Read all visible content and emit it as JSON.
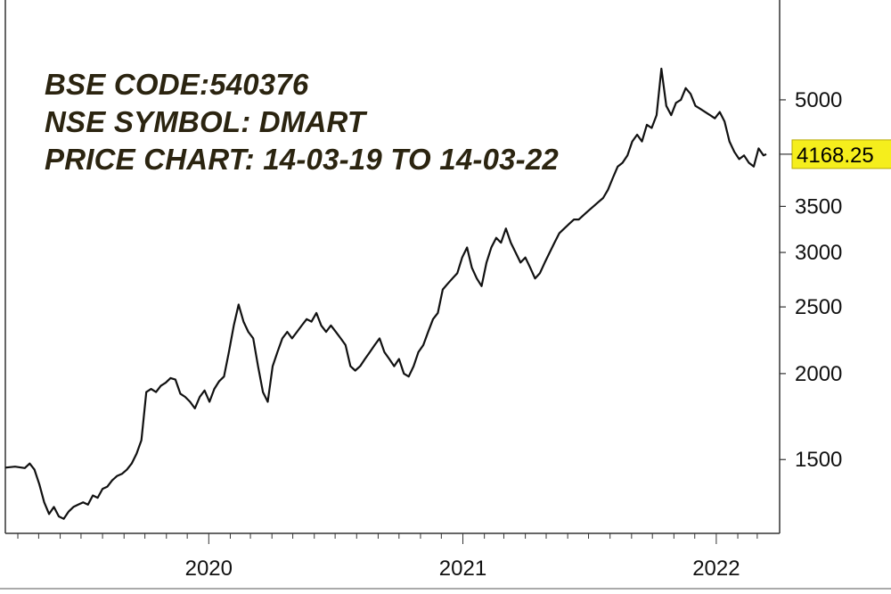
{
  "info": {
    "line1": "BSE CODE:540376",
    "line2": "NSE SYMBOL: DMART",
    "line3": "PRICE CHART: 14-03-19 TO 14-03-22"
  },
  "colors": {
    "line": "#111111",
    "axis": "#333333",
    "last_price_bg": "#f5ee1c",
    "text": "#2b2410"
  },
  "chart_data": {
    "type": "line",
    "y_scale": "log",
    "ylim": [
      1200,
      5500
    ],
    "xlim": [
      "2019-03-14",
      "2022-03-14"
    ],
    "grid": false,
    "y_ticks": [
      {
        "value": 1500,
        "label": "1500"
      },
      {
        "value": 2000,
        "label": "2000"
      },
      {
        "value": 2500,
        "label": "2500"
      },
      {
        "value": 3000,
        "label": "3000"
      },
      {
        "value": 3500,
        "label": "3500"
      },
      {
        "value": 5000,
        "label": "5000"
      }
    ],
    "x_ticks": [
      {
        "date": "2020-01-01",
        "label": "2020"
      },
      {
        "date": "2021-01-01",
        "label": "2021"
      },
      {
        "date": "2022-01-01",
        "label": "2022"
      }
    ],
    "last_price": {
      "value": 4168.25,
      "label": "4168.25"
    },
    "series": [
      {
        "points": [
          [
            "2019-03-14",
            1460
          ],
          [
            "2019-03-28",
            1465
          ],
          [
            "2019-04-11",
            1458
          ],
          [
            "2019-04-18",
            1480
          ],
          [
            "2019-04-25",
            1450
          ],
          [
            "2019-05-02",
            1380
          ],
          [
            "2019-05-09",
            1300
          ],
          [
            "2019-05-16",
            1250
          ],
          [
            "2019-05-23",
            1280
          ],
          [
            "2019-05-30",
            1240
          ],
          [
            "2019-06-06",
            1230
          ],
          [
            "2019-06-13",
            1260
          ],
          [
            "2019-06-20",
            1280
          ],
          [
            "2019-06-27",
            1290
          ],
          [
            "2019-07-04",
            1300
          ],
          [
            "2019-07-11",
            1290
          ],
          [
            "2019-07-18",
            1330
          ],
          [
            "2019-07-25",
            1320
          ],
          [
            "2019-08-01",
            1360
          ],
          [
            "2019-08-08",
            1370
          ],
          [
            "2019-08-15",
            1400
          ],
          [
            "2019-08-22",
            1420
          ],
          [
            "2019-08-29",
            1430
          ],
          [
            "2019-09-05",
            1450
          ],
          [
            "2019-09-12",
            1480
          ],
          [
            "2019-09-19",
            1530
          ],
          [
            "2019-09-26",
            1600
          ],
          [
            "2019-10-03",
            1880
          ],
          [
            "2019-10-10",
            1900
          ],
          [
            "2019-10-17",
            1880
          ],
          [
            "2019-10-24",
            1920
          ],
          [
            "2019-10-31",
            1940
          ],
          [
            "2019-11-07",
            1970
          ],
          [
            "2019-11-14",
            1960
          ],
          [
            "2019-11-21",
            1870
          ],
          [
            "2019-11-28",
            1850
          ],
          [
            "2019-12-05",
            1820
          ],
          [
            "2019-12-12",
            1780
          ],
          [
            "2019-12-19",
            1850
          ],
          [
            "2019-12-26",
            1890
          ],
          [
            "2020-01-02",
            1820
          ],
          [
            "2020-01-09",
            1900
          ],
          [
            "2020-01-16",
            1950
          ],
          [
            "2020-01-23",
            1980
          ],
          [
            "2020-01-30",
            2150
          ],
          [
            "2020-02-06",
            2350
          ],
          [
            "2020-02-13",
            2520
          ],
          [
            "2020-02-20",
            2380
          ],
          [
            "2020-02-27",
            2300
          ],
          [
            "2020-03-05",
            2250
          ],
          [
            "2020-03-12",
            2050
          ],
          [
            "2020-03-19",
            1880
          ],
          [
            "2020-03-26",
            1820
          ],
          [
            "2020-04-02",
            2050
          ],
          [
            "2020-04-09",
            2150
          ],
          [
            "2020-04-16",
            2250
          ],
          [
            "2020-04-23",
            2300
          ],
          [
            "2020-04-30",
            2250
          ],
          [
            "2020-05-07",
            2300
          ],
          [
            "2020-05-14",
            2350
          ],
          [
            "2020-05-21",
            2400
          ],
          [
            "2020-05-28",
            2380
          ],
          [
            "2020-06-04",
            2450
          ],
          [
            "2020-06-11",
            2350
          ],
          [
            "2020-06-18",
            2300
          ],
          [
            "2020-06-25",
            2350
          ],
          [
            "2020-07-02",
            2300
          ],
          [
            "2020-07-09",
            2250
          ],
          [
            "2020-07-16",
            2200
          ],
          [
            "2020-07-23",
            2050
          ],
          [
            "2020-07-30",
            2020
          ],
          [
            "2020-08-06",
            2050
          ],
          [
            "2020-08-13",
            2100
          ],
          [
            "2020-08-20",
            2150
          ],
          [
            "2020-08-27",
            2200
          ],
          [
            "2020-09-03",
            2250
          ],
          [
            "2020-09-10",
            2150
          ],
          [
            "2020-09-17",
            2100
          ],
          [
            "2020-09-24",
            2050
          ],
          [
            "2020-10-01",
            2100
          ],
          [
            "2020-10-08",
            2000
          ],
          [
            "2020-10-15",
            1980
          ],
          [
            "2020-10-22",
            2050
          ],
          [
            "2020-10-29",
            2150
          ],
          [
            "2020-11-05",
            2200
          ],
          [
            "2020-11-12",
            2300
          ],
          [
            "2020-11-19",
            2400
          ],
          [
            "2020-11-26",
            2450
          ],
          [
            "2020-12-03",
            2650
          ],
          [
            "2020-12-10",
            2700
          ],
          [
            "2020-12-17",
            2750
          ],
          [
            "2020-12-24",
            2800
          ],
          [
            "2020-12-31",
            2950
          ],
          [
            "2021-01-07",
            3050
          ],
          [
            "2021-01-14",
            2850
          ],
          [
            "2021-01-21",
            2750
          ],
          [
            "2021-01-28",
            2680
          ],
          [
            "2021-02-04",
            2900
          ],
          [
            "2021-02-11",
            3050
          ],
          [
            "2021-02-18",
            3150
          ],
          [
            "2021-02-25",
            3100
          ],
          [
            "2021-03-04",
            3250
          ],
          [
            "2021-03-11",
            3100
          ],
          [
            "2021-03-18",
            3000
          ],
          [
            "2021-03-25",
            2900
          ],
          [
            "2021-04-01",
            2950
          ],
          [
            "2021-04-08",
            2850
          ],
          [
            "2021-04-15",
            2750
          ],
          [
            "2021-04-22",
            2800
          ],
          [
            "2021-04-29",
            2900
          ],
          [
            "2021-05-06",
            3000
          ],
          [
            "2021-05-13",
            3100
          ],
          [
            "2021-05-20",
            3200
          ],
          [
            "2021-05-27",
            3250
          ],
          [
            "2021-06-03",
            3300
          ],
          [
            "2021-06-10",
            3350
          ],
          [
            "2021-06-17",
            3350
          ],
          [
            "2021-06-24",
            3400
          ],
          [
            "2021-07-01",
            3450
          ],
          [
            "2021-07-08",
            3500
          ],
          [
            "2021-07-15",
            3550
          ],
          [
            "2021-07-22",
            3600
          ],
          [
            "2021-07-29",
            3700
          ],
          [
            "2021-08-05",
            3850
          ],
          [
            "2021-08-12",
            4000
          ],
          [
            "2021-08-19",
            4050
          ],
          [
            "2021-08-26",
            4150
          ],
          [
            "2021-09-02",
            4350
          ],
          [
            "2021-09-09",
            4450
          ],
          [
            "2021-09-16",
            4350
          ],
          [
            "2021-09-23",
            4600
          ],
          [
            "2021-09-30",
            4550
          ],
          [
            "2021-10-07",
            4750
          ],
          [
            "2021-10-14",
            5550
          ],
          [
            "2021-10-21",
            4900
          ],
          [
            "2021-10-28",
            4750
          ],
          [
            "2021-11-04",
            4950
          ],
          [
            "2021-11-11",
            5000
          ],
          [
            "2021-11-18",
            5200
          ],
          [
            "2021-11-25",
            5100
          ],
          [
            "2021-12-02",
            4900
          ],
          [
            "2021-12-09",
            4850
          ],
          [
            "2021-12-16",
            4800
          ],
          [
            "2021-12-23",
            4750
          ],
          [
            "2021-12-30",
            4700
          ],
          [
            "2022-01-06",
            4800
          ],
          [
            "2022-01-13",
            4650
          ],
          [
            "2022-01-20",
            4350
          ],
          [
            "2022-01-27",
            4200
          ],
          [
            "2022-02-03",
            4100
          ],
          [
            "2022-02-10",
            4150
          ],
          [
            "2022-02-17",
            4050
          ],
          [
            "2022-02-24",
            4000
          ],
          [
            "2022-03-03",
            4250
          ],
          [
            "2022-03-10",
            4150
          ],
          [
            "2022-03-14",
            4168.25
          ]
        ]
      }
    ]
  }
}
